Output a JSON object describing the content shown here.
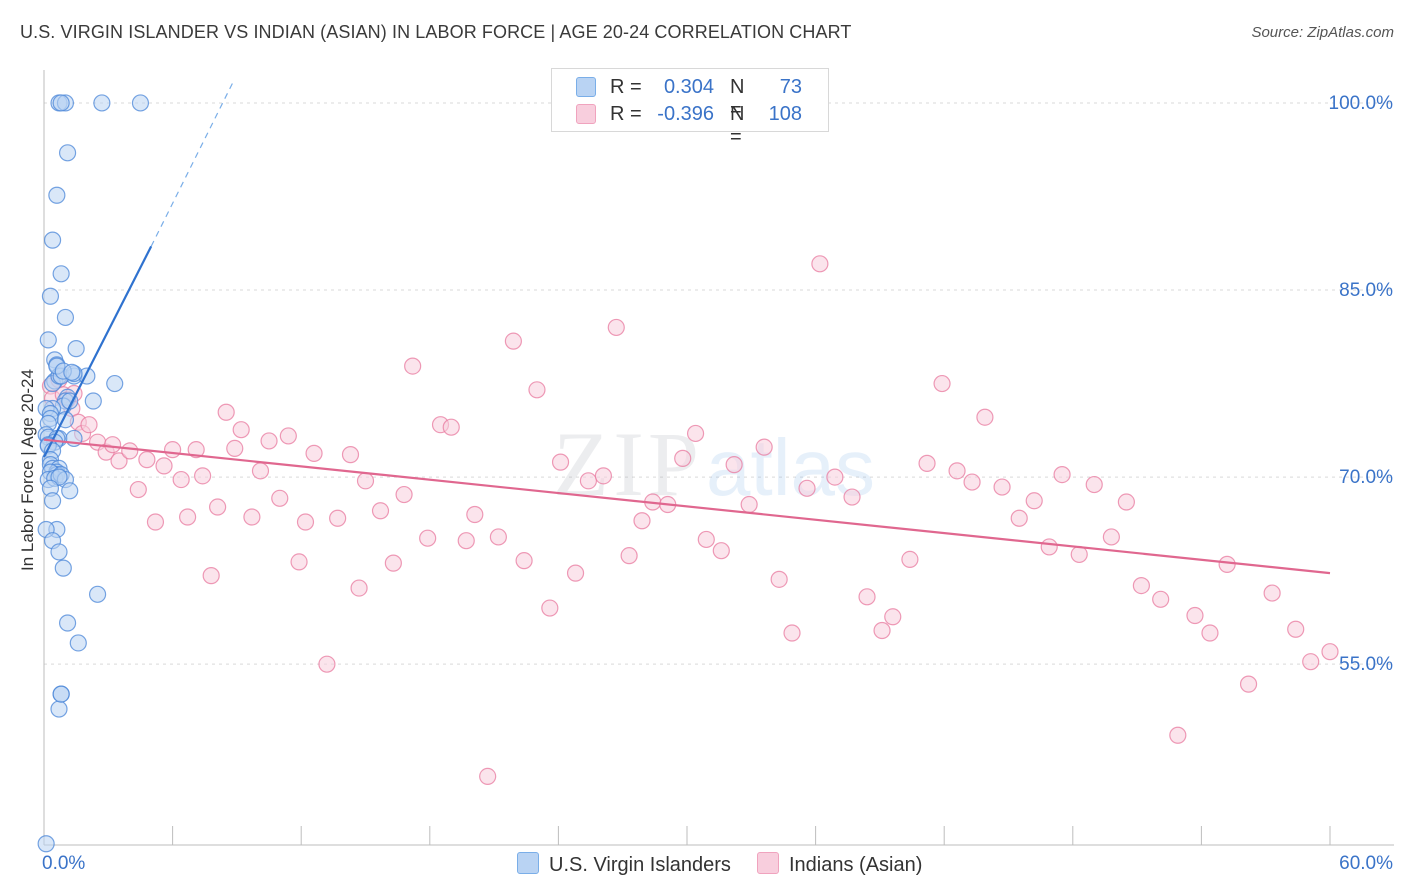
{
  "title": "U.S. VIRGIN ISLANDER VS INDIAN (ASIAN) IN LABOR FORCE | AGE 20-24 CORRELATION CHART",
  "source": "Source: ZipAtlas.com",
  "watermark": {
    "zip": "ZIP",
    "atlas": "atlas"
  },
  "legend": {
    "rows": [
      {
        "r_label": "R =",
        "r_value": "0.304",
        "n_label": "N =",
        "n_value": "73",
        "color": "#7aaee8",
        "fill": "#b9d3f3"
      },
      {
        "r_label": "R =",
        "r_value": "-0.396",
        "n_label": "N =",
        "n_value": "108",
        "color": "#f0a3be",
        "fill": "#f8cedd"
      }
    ]
  },
  "bottom_legend": [
    {
      "label": "U.S. Virgin Islanders",
      "color": "#7aaee8",
      "fill": "#b9d3f3"
    },
    {
      "label": "Indians (Asian)",
      "color": "#f0a3be",
      "fill": "#f8cedd"
    }
  ],
  "chart_data": {
    "type": "scatter",
    "title": "U.S. VIRGIN ISLANDER VS INDIAN (ASIAN) IN LABOR FORCE | AGE 20-24 CORRELATION CHART",
    "xlabel": "",
    "ylabel": "In Labor Force | Age 20-24",
    "xlim": [
      0,
      60
    ],
    "ylim": [
      40.5,
      102
    ],
    "x_tick_labels": [
      "0.0%",
      "60.0%"
    ],
    "y_ticks": [
      55,
      70,
      85,
      100
    ],
    "y_tick_labels": [
      "55.0%",
      "70.0%",
      "85.0%",
      "100.0%"
    ],
    "grid": true,
    "legend_position": "top-center",
    "series": [
      {
        "name": "U.S. Virgin Islanders",
        "color": "#4a86d8",
        "fill": "#b9d3f3",
        "trend": {
          "x": [
            0.0,
            5.0
          ],
          "y": [
            71.6,
            88.5
          ],
          "dashed_to": [
            8.8,
            101.6
          ]
        },
        "x": [
          0.7,
          1.0,
          2.7,
          4.5,
          0.8,
          1.1,
          0.6,
          0.4,
          0.8,
          0.3,
          0.2,
          1.0,
          1.5,
          0.5,
          0.6,
          0.5,
          0.4,
          3.3,
          1.4,
          2.0,
          0.7,
          1.1,
          1.0,
          0.9,
          0.4,
          0.1,
          0.3,
          0.3,
          0.2,
          1.0,
          0.1,
          0.2,
          0.7,
          0.6,
          0.5,
          0.2,
          0.2,
          0.4,
          0.3,
          0.3,
          0.4,
          0.7,
          0.6,
          0.6,
          0.3,
          0.2,
          0.5,
          0.8,
          1.0,
          0.7,
          1.2,
          0.3,
          0.4,
          0.6,
          0.1,
          0.4,
          0.7,
          0.9,
          2.5,
          1.1,
          1.6,
          0.8,
          0.7,
          0.8,
          0.8,
          1.4,
          2.3,
          0.6,
          0.9,
          1.3,
          1.2,
          1.4,
          0.1
        ],
        "y": [
          100,
          100,
          100,
          100,
          100,
          96,
          92.6,
          89,
          86.3,
          84.5,
          81,
          82.8,
          80.3,
          79.4,
          79,
          77.7,
          77.5,
          77.5,
          78.1,
          78.1,
          78.1,
          76.4,
          76.1,
          75.7,
          75.5,
          75.5,
          75.1,
          74.7,
          74.3,
          74.6,
          73.4,
          73.2,
          73.1,
          73.1,
          72.8,
          72.6,
          72.5,
          72.1,
          71.4,
          71,
          70.7,
          70.7,
          70.4,
          70.2,
          70.4,
          69.8,
          69.9,
          70.2,
          69.8,
          70.0,
          68.9,
          69.1,
          68.1,
          65.8,
          65.8,
          64.9,
          64.0,
          62.7,
          60.6,
          58.3,
          56.7,
          52.6,
          51.4,
          52.6,
          78.1,
          78.3,
          76.1,
          78.9,
          78.5,
          78.4,
          76.1,
          73.1,
          40.6
        ]
      },
      {
        "name": "Indians (Asian)",
        "color": "#e8799f",
        "fill": "#f8cedd",
        "trend": {
          "x": [
            0.0,
            60.0
          ],
          "y": [
            73.0,
            62.3
          ]
        },
        "x": [
          0.3,
          0.4,
          0.7,
          0.9,
          1.1,
          1.3,
          1.4,
          1.6,
          1.8,
          2.1,
          2.5,
          2.9,
          3.2,
          3.5,
          4.0,
          4.4,
          4.8,
          5.2,
          5.6,
          6.0,
          6.4,
          6.7,
          7.1,
          7.4,
          7.8,
          8.1,
          8.5,
          8.9,
          9.2,
          9.7,
          10.1,
          10.5,
          11.0,
          11.4,
          11.9,
          12.2,
          12.6,
          13.2,
          13.7,
          14.3,
          14.7,
          15.0,
          15.7,
          16.3,
          16.8,
          17.2,
          17.9,
          18.5,
          19.0,
          19.7,
          20.1,
          20.7,
          21.2,
          21.9,
          22.4,
          23.0,
          23.6,
          24.1,
          24.8,
          25.4,
          26.1,
          26.7,
          27.3,
          27.9,
          28.4,
          29.1,
          29.8,
          30.4,
          30.9,
          31.6,
          32.2,
          32.9,
          33.6,
          34.3,
          34.9,
          35.6,
          36.2,
          36.9,
          37.7,
          38.4,
          39.1,
          39.6,
          40.4,
          41.2,
          41.9,
          42.6,
          43.3,
          43.9,
          44.7,
          45.5,
          46.2,
          46.9,
          47.5,
          48.3,
          49.0,
          49.8,
          50.5,
          51.2,
          52.1,
          52.9,
          53.7,
          54.4,
          55.2,
          56.2,
          57.3,
          58.4,
          59.1,
          60.0
        ],
        "y": [
          77.3,
          76.3,
          77.8,
          76.6,
          76.2,
          75.5,
          76.7,
          74.4,
          73.5,
          74.2,
          72.8,
          72.0,
          72.6,
          71.3,
          72.1,
          69.0,
          71.4,
          66.4,
          70.9,
          72.2,
          69.8,
          66.8,
          72.2,
          70.1,
          62.1,
          67.6,
          75.2,
          72.3,
          73.8,
          66.8,
          70.5,
          72.9,
          68.3,
          73.3,
          63.2,
          66.4,
          71.9,
          55.0,
          66.7,
          71.8,
          61.1,
          69.7,
          67.3,
          63.1,
          68.6,
          78.9,
          65.1,
          74.2,
          74.0,
          64.9,
          67.0,
          46.0,
          65.2,
          80.9,
          63.3,
          77.0,
          59.5,
          71.2,
          62.3,
          69.7,
          70.1,
          82.0,
          63.7,
          66.5,
          68.0,
          67.8,
          71.5,
          73.5,
          65.0,
          64.1,
          71.0,
          67.8,
          72.4,
          61.8,
          57.5,
          69.1,
          87.1,
          70.0,
          68.4,
          60.4,
          57.7,
          58.8,
          63.4,
          71.1,
          77.5,
          70.5,
          69.6,
          74.8,
          69.2,
          66.7,
          68.1,
          64.4,
          70.2,
          63.8,
          69.4,
          65.2,
          68.0,
          61.3,
          60.2,
          49.3,
          58.9,
          57.5,
          63.0,
          53.4,
          60.7,
          57.8,
          55.2,
          56.0
        ]
      }
    ]
  }
}
